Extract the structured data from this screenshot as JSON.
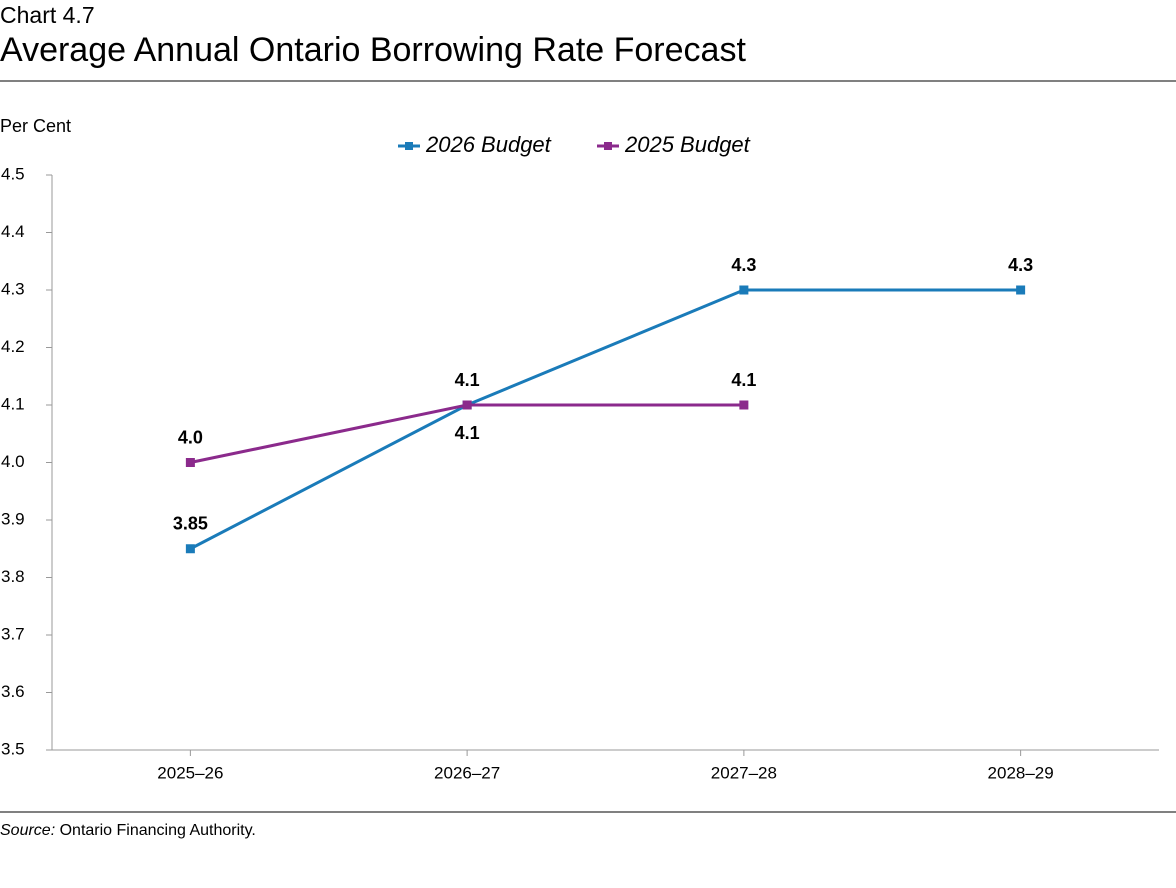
{
  "chart_data": {
    "type": "line",
    "title": "Chart 4.7",
    "subtitle": "Average Annual Ontario Borrowing Rate Forecast",
    "y_label": "Per Cent",
    "categories": [
      "2025–26",
      "2026–27",
      "2027–28",
      "2028–29"
    ],
    "series": [
      {
        "name": "2026 Budget",
        "color": "#1a7bb9",
        "values": [
          3.85,
          4.1,
          4.3,
          4.3
        ]
      },
      {
        "name": "2025 Budget",
        "color": "#8b2a8c",
        "values": [
          4.0,
          4.1,
          4.1,
          null
        ],
        "value_labels": [
          "4.0",
          "4.1",
          "4.1",
          null
        ]
      }
    ],
    "ylim": [
      3.5,
      4.5
    ],
    "yticks": [
      3.5,
      3.6,
      3.7,
      3.8,
      3.9,
      {
        "value": 4.0,
        "label": "4.0"
      },
      4.1,
      4.2,
      4.3,
      4.4,
      4.5
    ],
    "legend": "top",
    "source": {
      "label": "Source:",
      "text": "Ontario Financing Authority."
    }
  }
}
